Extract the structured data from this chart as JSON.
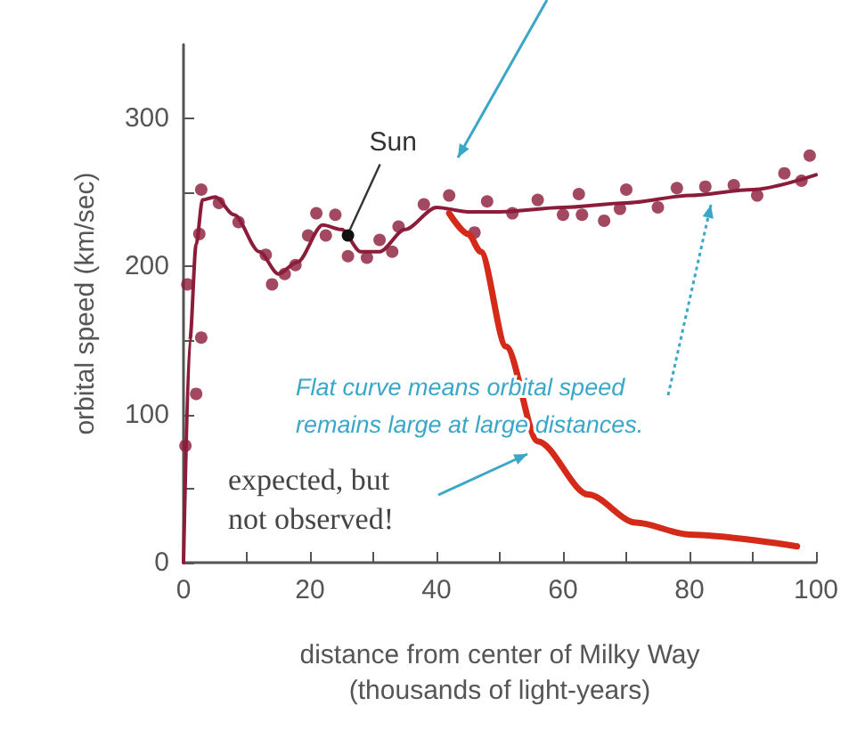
{
  "chart_data": {
    "type": "scatter",
    "xlabel": "distance from center of Milky Way\n(thousands of light-years)",
    "ylabel": "orbital speed (km/sec)",
    "xlim": [
      0,
      100
    ],
    "ylim": [
      0,
      350
    ],
    "xticks": [
      0,
      {
        "value": 10,
        "label": null
      },
      20,
      {
        "value": 30,
        "label": null
      },
      40,
      {
        "value": 50,
        "label": null
      },
      60,
      {
        "value": 70,
        "label": null
      },
      80,
      {
        "value": 90,
        "label": null
      },
      100
    ],
    "yticks": [
      0,
      {
        "value": 50,
        "label": null
      },
      100,
      {
        "value": 150,
        "label": null
      },
      200,
      {
        "value": 250,
        "label": null
      },
      300
    ],
    "grid": false,
    "series": [
      {
        "color": "#8b1c3a",
        "marker": "circle",
        "x": [
          0.3,
          2,
          2.8,
          0.6,
          2.5,
          2.8,
          5.6,
          8.7,
          13,
          14,
          16,
          17.7,
          19.7,
          21,
          22.5,
          24,
          26,
          29,
          31,
          33,
          34,
          38,
          42,
          46,
          48,
          52,
          56,
          60,
          62.5,
          63,
          66.5,
          69,
          70,
          75,
          78,
          82.5,
          87,
          90.7,
          95,
          97.7,
          99
        ],
        "values": [
          79,
          114,
          152,
          188,
          222,
          252,
          243,
          230,
          208,
          188,
          195,
          201,
          221,
          236,
          221,
          235,
          207,
          206,
          218,
          210,
          227,
          242,
          248,
          223,
          244,
          236,
          245,
          235,
          249,
          235,
          231,
          239,
          252,
          240,
          253,
          254,
          255,
          248,
          263,
          258,
          275
        ]
      },
      {
        "type": "line",
        "color": "#8b1c3a",
        "marker": "none",
        "x": [
          0,
          1,
          2,
          3,
          5,
          8,
          12,
          15,
          18,
          22,
          25,
          28,
          31,
          35,
          40,
          45,
          50,
          60,
          70,
          80,
          90,
          100
        ],
        "values": [
          0,
          150,
          215,
          245,
          247,
          235,
          210,
          195,
          203,
          228,
          225,
          210,
          210,
          225,
          240,
          237,
          237,
          240,
          243,
          248,
          252,
          262
        ]
      },
      {
        "type": "line",
        "color": "#d42a1a",
        "marker": "none",
        "x": [
          42,
          45,
          47,
          51,
          56,
          64,
          71.5,
          80,
          97
        ],
        "values": [
          236,
          222,
          210,
          146,
          82,
          46,
          27,
          19,
          11
        ]
      }
    ],
    "annotations": [
      {
        "text": "Sun",
        "x": 26,
        "y": 221
      },
      "Flat curve means orbital speed\nremains large at large distances.",
      "expected, but\nnot observed!"
    ]
  }
}
